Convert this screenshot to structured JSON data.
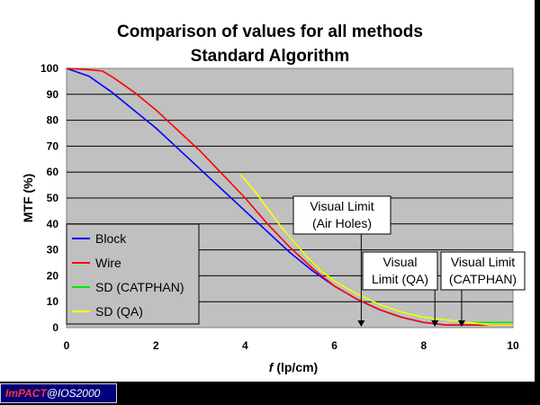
{
  "chart_data": {
    "type": "line",
    "title": [
      "Comparison of values for all methods",
      "Standard Algorithm"
    ],
    "xlabel_italic": "f",
    "xlabel_rest": " (lp/cm)",
    "ylabel": "MTF (%)",
    "xlim": [
      0,
      10
    ],
    "ylim": [
      0,
      100
    ],
    "xticks": [
      0,
      2,
      4,
      6,
      8,
      10
    ],
    "yticks": [
      0,
      10,
      20,
      30,
      40,
      50,
      60,
      70,
      80,
      90,
      100
    ],
    "grid": true,
    "legend_position": "bottom-left",
    "series": [
      {
        "name": "Block",
        "color": "#0000ff",
        "x": [
          0,
          0.5,
          1,
          1.5,
          2,
          2.5,
          3,
          3.5,
          4,
          4.5,
          5,
          5.5,
          6,
          6.5,
          7,
          7.5,
          8,
          8.5,
          9,
          9.5,
          10
        ],
        "y": [
          100,
          97,
          91,
          84,
          77,
          69,
          61,
          53,
          45,
          37,
          29,
          22,
          16,
          11,
          7,
          4,
          2,
          1,
          1,
          1,
          1
        ]
      },
      {
        "name": "Wire",
        "color": "#ff0000",
        "x": [
          0,
          0.5,
          0.8,
          1,
          1.5,
          2,
          2.5,
          3,
          3.5,
          4,
          4.5,
          5,
          5.5,
          6,
          6.5,
          7,
          7.5,
          8,
          8.5,
          9,
          9.5,
          10
        ],
        "y": [
          100,
          99.5,
          99,
          97,
          91,
          84,
          76,
          68,
          59,
          50,
          40,
          31,
          23,
          16,
          11,
          7,
          4,
          2,
          1,
          1,
          1,
          1
        ]
      },
      {
        "name": "SD (CATPHAN)",
        "color": "#00ee00",
        "x": [
          4.9,
          5.2,
          5.5,
          6,
          6.5,
          7,
          7.5,
          8,
          8.5,
          9,
          9.5,
          10
        ],
        "y": [
          37,
          31,
          25,
          18,
          13,
          9,
          6,
          4,
          3,
          2,
          2,
          2
        ]
      },
      {
        "name": "SD (QA)",
        "color": "#ffff00",
        "x": [
          3.9,
          4.2,
          4.5,
          4.8,
          5.1,
          5.4,
          5.7,
          6,
          6.5,
          7,
          7.5,
          8,
          8.5,
          9,
          9.5,
          10
        ],
        "y": [
          59,
          53,
          46,
          39,
          33,
          27,
          22,
          18,
          13,
          9,
          6,
          4,
          3,
          2,
          1,
          1
        ]
      }
    ],
    "annotations": [
      {
        "lines": [
          "Visual Limit",
          "(Air Holes)"
        ],
        "x": 6.6
      },
      {
        "lines": [
          "Visual",
          "Limit (QA)"
        ],
        "x": 8.25
      },
      {
        "lines": [
          "Visual Limit",
          "(CATPHAN)"
        ],
        "x": 8.85
      }
    ]
  },
  "footer": {
    "part1": "ImPACT",
    "part2": "@IOS2000"
  }
}
